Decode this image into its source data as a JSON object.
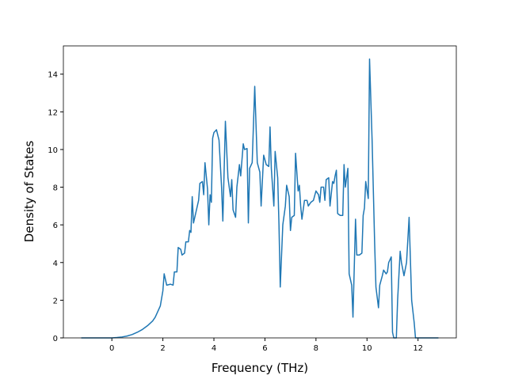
{
  "chart_data": {
    "type": "line",
    "xlabel": "Frequency (THz)",
    "ylabel": "Density of States",
    "xlim": [
      -1.9,
      13.5
    ],
    "ylim": [
      0,
      15.5
    ],
    "xticks": [
      0,
      2,
      4,
      6,
      8,
      10,
      12
    ],
    "yticks": [
      0,
      2,
      4,
      6,
      8,
      10,
      12,
      14
    ],
    "series": [
      {
        "color": "#1f77b4",
        "x": [
          -1.2,
          0,
          0.2,
          0.4,
          0.6,
          0.8,
          1.0,
          1.2,
          1.4,
          1.6,
          1.7,
          1.8,
          1.9,
          2.0,
          2.05,
          2.15,
          2.3,
          2.4,
          2.45,
          2.55,
          2.6,
          2.7,
          2.75,
          2.85,
          2.9,
          3.0,
          3.05,
          3.1,
          3.15,
          3.2,
          3.3,
          3.4,
          3.45,
          3.55,
          3.6,
          3.65,
          3.75,
          3.8,
          3.85,
          3.9,
          3.95,
          4.0,
          4.1,
          4.2,
          4.3,
          4.35,
          4.45,
          4.55,
          4.65,
          4.7,
          4.75,
          4.85,
          4.9,
          5.0,
          5.05,
          5.15,
          5.2,
          5.3,
          5.35,
          5.4,
          5.5,
          5.6,
          5.7,
          5.8,
          5.85,
          5.95,
          6.05,
          6.15,
          6.2,
          6.25,
          6.35,
          6.4,
          6.5,
          6.55,
          6.6,
          6.7,
          6.8,
          6.85,
          6.95,
          7.0,
          7.05,
          7.15,
          7.2,
          7.3,
          7.35,
          7.4,
          7.45,
          7.55,
          7.65,
          7.7,
          7.8,
          7.9,
          8.0,
          8.1,
          8.15,
          8.2,
          8.3,
          8.35,
          8.4,
          8.5,
          8.55,
          8.65,
          8.7,
          8.75,
          8.8,
          8.85,
          8.95,
          9.05,
          9.1,
          9.15,
          9.25,
          9.3,
          9.4,
          9.45,
          9.55,
          9.6,
          9.7,
          9.8,
          9.85,
          9.9,
          9.95,
          10.05,
          10.1,
          10.2,
          10.3,
          10.35,
          10.45,
          10.5,
          10.6,
          10.65,
          10.75,
          10.8,
          10.85,
          10.95,
          11.0,
          11.05,
          11.15,
          11.2,
          11.3,
          11.35,
          11.45,
          11.55,
          11.65,
          11.7,
          11.75,
          11.85,
          11.9,
          12.8
        ],
        "values": [
          0,
          0,
          0.02,
          0.05,
          0.1,
          0.18,
          0.3,
          0.45,
          0.65,
          0.9,
          1.1,
          1.4,
          1.7,
          2.5,
          3.4,
          2.8,
          2.85,
          2.8,
          3.5,
          3.5,
          4.8,
          4.7,
          4.4,
          4.5,
          5.1,
          5.1,
          5.7,
          5.6,
          7.5,
          6.1,
          6.7,
          7.3,
          8.2,
          8.3,
          7.6,
          9.3,
          7.9,
          6.0,
          7.6,
          7.2,
          10.6,
          10.9,
          11.05,
          10.5,
          8.0,
          6.2,
          11.5,
          8.5,
          7.5,
          8.4,
          6.8,
          6.4,
          8.0,
          9.2,
          8.6,
          10.3,
          10.0,
          10.05,
          6.1,
          9.0,
          9.3,
          13.35,
          9.3,
          8.8,
          7.0,
          9.7,
          9.2,
          9.1,
          11.2,
          9.0,
          7.0,
          9.9,
          8.5,
          6.0,
          2.7,
          6.0,
          7.0,
          8.1,
          7.5,
          5.7,
          6.4,
          6.5,
          9.8,
          7.8,
          8.1,
          7.0,
          6.3,
          7.3,
          7.3,
          7.0,
          7.2,
          7.3,
          7.8,
          7.6,
          7.2,
          8.0,
          8.0,
          7.3,
          8.4,
          8.5,
          7.0,
          8.3,
          8.2,
          8.6,
          8.9,
          6.6,
          6.5,
          6.5,
          9.2,
          8.0,
          9.0,
          3.4,
          2.8,
          1.1,
          6.3,
          4.4,
          4.4,
          4.5,
          6.5,
          6.9,
          8.3,
          7.4,
          14.8,
          10.5,
          5.0,
          2.7,
          1.6,
          2.8,
          3.3,
          3.6,
          3.4,
          3.5,
          4.0,
          4.3,
          0.3,
          0,
          0,
          2.0,
          4.6,
          4.0,
          3.3,
          4.0,
          6.4,
          4.2,
          2.0,
          0.8,
          0,
          0
        ]
      }
    ]
  }
}
